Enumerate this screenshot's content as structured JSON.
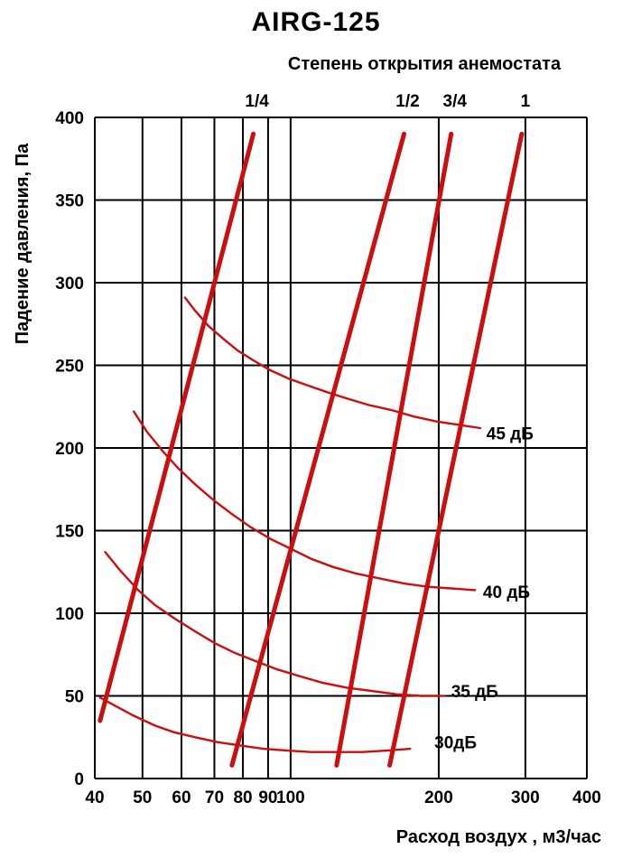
{
  "chart_data": {
    "type": "line",
    "title": "AIRG-125",
    "top_axis_title": "Степень открытия анемостата",
    "xlabel": "Расход воздух , м3/час",
    "ylabel": "Падение давления, Па",
    "x_scale": "log",
    "xlim": [
      40,
      400
    ],
    "ylim": [
      0,
      400
    ],
    "x_ticks": [
      40,
      50,
      60,
      70,
      80,
      90,
      100,
      200,
      300,
      400
    ],
    "y_ticks": [
      0,
      50,
      100,
      150,
      200,
      250,
      300,
      350,
      400
    ],
    "grid": true,
    "legend_position": "none",
    "colors": {
      "line": "#cc0e0e",
      "grid": "#000000",
      "background": "#ffffff"
    },
    "opening_lines": [
      {
        "label": "1/4",
        "points": [
          [
            41,
            35
          ],
          [
            84,
            390
          ]
        ]
      },
      {
        "label": "1/2",
        "points": [
          [
            76,
            8
          ],
          [
            170,
            390
          ]
        ]
      },
      {
        "label": "3/4",
        "points": [
          [
            124,
            8
          ],
          [
            212,
            390
          ]
        ]
      },
      {
        "label": "1",
        "points": [
          [
            159,
            8
          ],
          [
            295,
            390
          ]
        ]
      }
    ],
    "noise_curves": [
      {
        "label": "45 дБ",
        "label_at": [
          250,
          209
        ],
        "points": [
          [
            61,
            291
          ],
          [
            64,
            283
          ],
          [
            68,
            274
          ],
          [
            73,
            266
          ],
          [
            78,
            259
          ],
          [
            84,
            253
          ],
          [
            91,
            247
          ],
          [
            99,
            242
          ],
          [
            108,
            238
          ],
          [
            118,
            234
          ],
          [
            130,
            230
          ],
          [
            144,
            226
          ],
          [
            160,
            223
          ],
          [
            178,
            219
          ],
          [
            198,
            216
          ],
          [
            220,
            214
          ],
          [
            243,
            212
          ]
        ]
      },
      {
        "label": "40 дБ",
        "label_at": [
          246,
          113
        ],
        "points": [
          [
            48,
            222
          ],
          [
            51,
            210
          ],
          [
            55,
            198
          ],
          [
            59,
            188
          ],
          [
            64,
            178
          ],
          [
            70,
            168
          ],
          [
            76,
            160
          ],
          [
            83,
            152
          ],
          [
            91,
            145
          ],
          [
            100,
            139
          ],
          [
            110,
            133
          ],
          [
            122,
            128
          ],
          [
            136,
            124
          ],
          [
            152,
            121
          ],
          [
            170,
            118
          ],
          [
            190,
            116
          ],
          [
            212,
            115
          ],
          [
            237,
            114
          ]
        ]
      },
      {
        "label": "35 дБ",
        "label_at": [
          212,
          53
        ],
        "points": [
          [
            42,
            137
          ],
          [
            45,
            126
          ],
          [
            49,
            114
          ],
          [
            53,
            105
          ],
          [
            58,
            97
          ],
          [
            64,
            89
          ],
          [
            70,
            82
          ],
          [
            77,
            76
          ],
          [
            85,
            71
          ],
          [
            94,
            66
          ],
          [
            104,
            62
          ],
          [
            116,
            58
          ],
          [
            130,
            55
          ],
          [
            146,
            53
          ],
          [
            164,
            51
          ],
          [
            184,
            50
          ],
          [
            205,
            50
          ]
        ]
      },
      {
        "label": "30дБ",
        "label_at": [
          196,
          22
        ],
        "points": [
          [
            41,
            49
          ],
          [
            44,
            44
          ],
          [
            48,
            38
          ],
          [
            53,
            32
          ],
          [
            58,
            28
          ],
          [
            64,
            25
          ],
          [
            71,
            22
          ],
          [
            79,
            20
          ],
          [
            88,
            18
          ],
          [
            98,
            17
          ],
          [
            110,
            16
          ],
          [
            124,
            16
          ],
          [
            140,
            16
          ],
          [
            158,
            17
          ],
          [
            175,
            18
          ]
        ]
      }
    ]
  }
}
